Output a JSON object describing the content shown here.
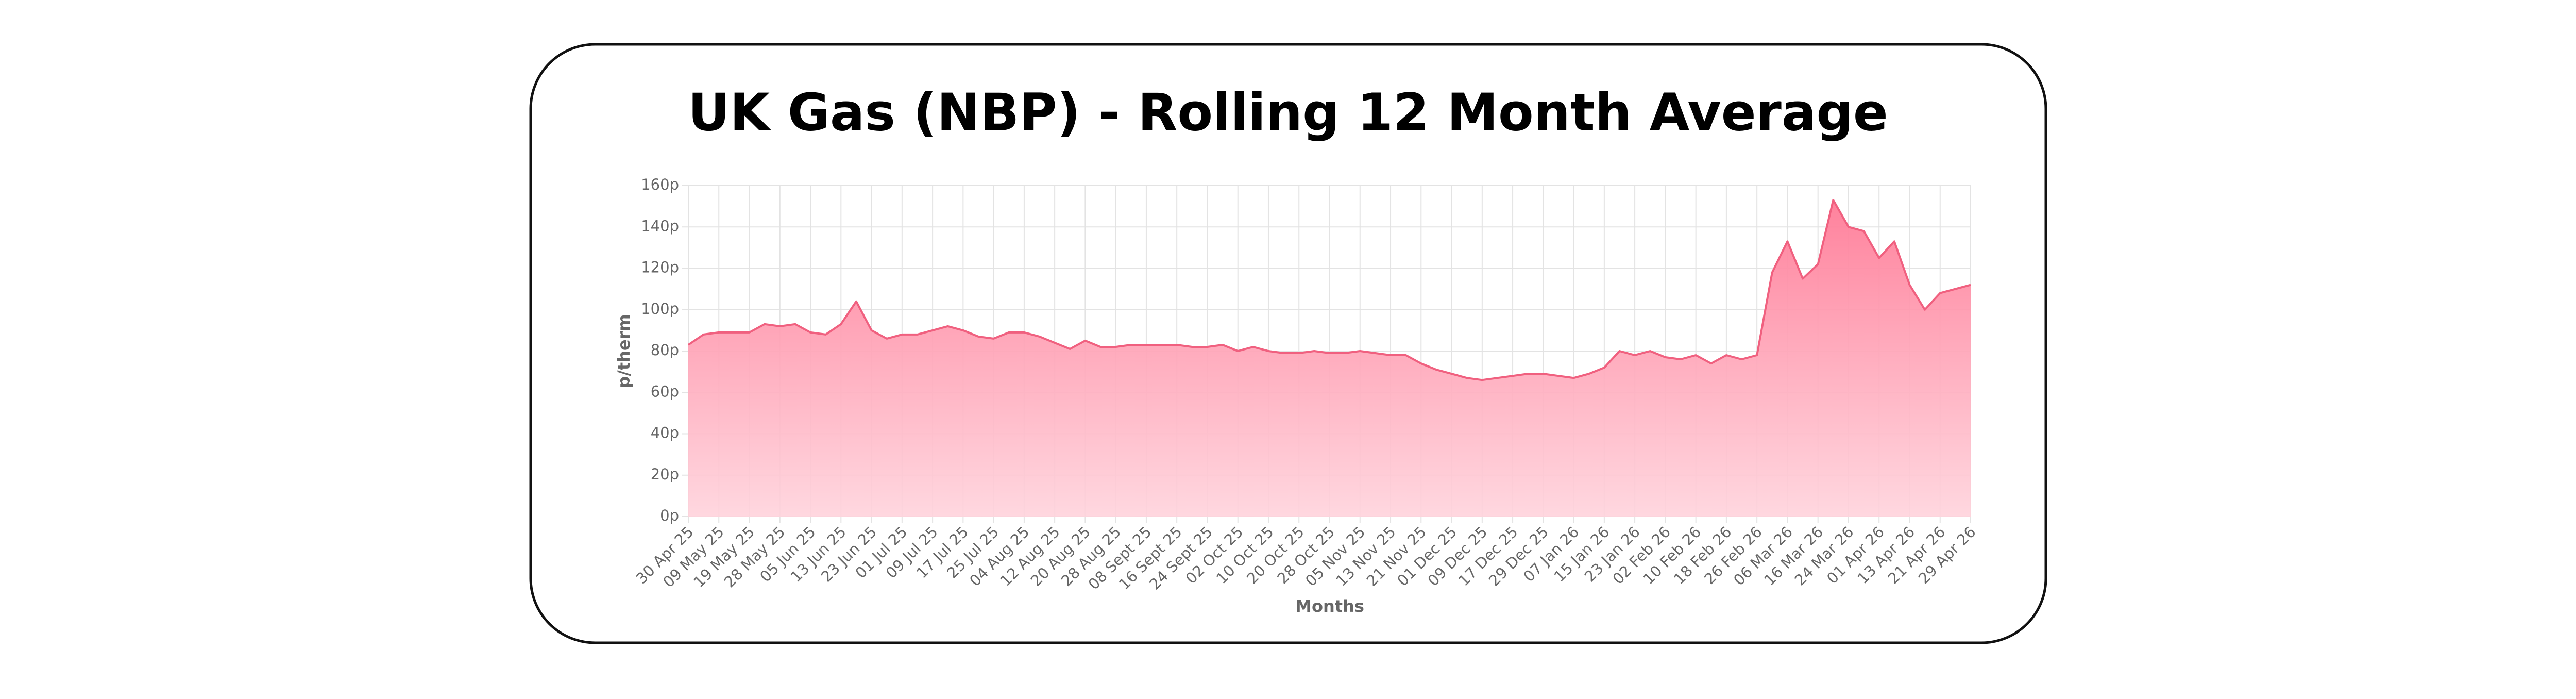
{
  "chart_data": {
    "type": "area",
    "title": "UK Gas (NBP) - Rolling 12 Month Average",
    "x_label": "Months",
    "y_label": "p/therm",
    "categories": [
      "30 Apr 25",
      null,
      "09 May 25",
      null,
      "19 May 25",
      null,
      "28 May 25",
      null,
      "05 Jun 25",
      null,
      "13 Jun 25",
      null,
      "23 Jun 25",
      null,
      "01 Jul 25",
      null,
      "09 Jul 25",
      null,
      "17 Jul 25",
      null,
      "25 Jul 25",
      null,
      "04 Aug 25",
      null,
      "12 Aug 25",
      null,
      "20 Aug 25",
      null,
      "28 Aug 25",
      null,
      "08 Sept 25",
      null,
      "16 Sept 25",
      null,
      "24 Sept 25",
      null,
      "02 Oct 25",
      null,
      "10 Oct 25",
      null,
      "20 Oct 25",
      null,
      "28 Oct 25",
      null,
      "05 Nov 25",
      null,
      "13 Nov 25",
      null,
      "21 Nov 25",
      null,
      "01 Dec 25",
      null,
      "09 Dec 25",
      null,
      "17 Dec 25",
      null,
      "29 Dec 25",
      null,
      "07 Jan 26",
      null,
      "15 Jan 26",
      null,
      "23 Jan 26",
      null,
      "02 Feb 26",
      null,
      "10 Feb 26",
      null,
      "18 Feb 26",
      null,
      "26 Feb 26",
      null,
      "06 Mar 26",
      null,
      "16 Mar 26",
      null,
      "24 Mar 26",
      null,
      "01 Apr 26",
      null,
      "13 Apr 26",
      null,
      "21 Apr 26",
      null,
      "29 Apr 26"
    ],
    "values": [
      83,
      88,
      89,
      89,
      89,
      93,
      92,
      93,
      89,
      88,
      93,
      104,
      90,
      86,
      88,
      88,
      90,
      92,
      90,
      87,
      86,
      89,
      89,
      87,
      84,
      81,
      85,
      82,
      82,
      83,
      83,
      83,
      83,
      82,
      82,
      83,
      80,
      82,
      80,
      79,
      79,
      80,
      79,
      79,
      80,
      79,
      78,
      78,
      74,
      71,
      69,
      67,
      66,
      67,
      68,
      69,
      69,
      68,
      67,
      69,
      72,
      80,
      78,
      80,
      77,
      76,
      78,
      74,
      78,
      76,
      78,
      118,
      133,
      115,
      122,
      153,
      140,
      138,
      125,
      133,
      112,
      100,
      108,
      110,
      112
    ],
    "color": "#f0607f",
    "ylim": [
      0,
      160
    ],
    "yticks": [
      {
        "value": 0,
        "label": "0p"
      },
      {
        "value": 20,
        "label": "20p"
      },
      {
        "value": 40,
        "label": "40p"
      },
      {
        "value": 60,
        "label": "60p"
      },
      {
        "value": 80,
        "label": "80p"
      },
      {
        "value": 100,
        "label": "100p"
      },
      {
        "value": 120,
        "label": "120p"
      },
      {
        "value": 140,
        "label": "140p"
      },
      {
        "value": 160,
        "label": "160p"
      }
    ],
    "grid": true
  }
}
